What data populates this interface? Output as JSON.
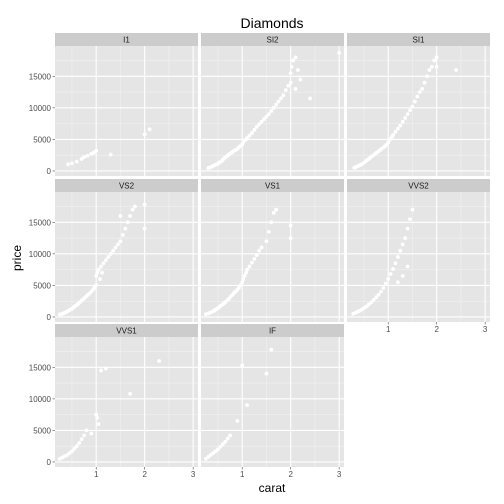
{
  "chart_data": {
    "type": "scatter",
    "title": "Diamonds",
    "xlabel": "carat",
    "ylabel": "price",
    "xlim": [
      0.15,
      3.1
    ],
    "ylim": [
      -800,
      19800
    ],
    "xticks": [
      1,
      2,
      3
    ],
    "yticks": [
      0,
      5000,
      10000,
      15000
    ],
    "grid": true,
    "facet_layout": {
      "ncol": 3,
      "nrow": 3
    },
    "colors": {
      "panel": "#e5e5e5",
      "strip": "#cccccc",
      "grid_major": "#ffffff",
      "grid_minor": "#f2f2f2",
      "point": "#ffffff"
    },
    "panels": [
      {
        "label": "I1",
        "points": [
          [
            0.42,
            1050
          ],
          [
            0.5,
            1200
          ],
          [
            0.6,
            1500
          ],
          [
            0.7,
            1900
          ],
          [
            0.75,
            2200
          ],
          [
            0.82,
            2400
          ],
          [
            0.9,
            2700
          ],
          [
            0.95,
            2900
          ],
          [
            1.0,
            3200
          ],
          [
            1.3,
            2600
          ],
          [
            2.0,
            5800
          ],
          [
            2.1,
            6600
          ]
        ]
      },
      {
        "label": "SI2",
        "points": [
          [
            0.3,
            450
          ],
          [
            0.32,
            500
          ],
          [
            0.35,
            600
          ],
          [
            0.38,
            700
          ],
          [
            0.4,
            800
          ],
          [
            0.43,
            900
          ],
          [
            0.46,
            1000
          ],
          [
            0.5,
            1150
          ],
          [
            0.52,
            1300
          ],
          [
            0.55,
            1450
          ],
          [
            0.58,
            1600
          ],
          [
            0.6,
            1800
          ],
          [
            0.63,
            2000
          ],
          [
            0.66,
            2200
          ],
          [
            0.7,
            2400
          ],
          [
            0.72,
            2600
          ],
          [
            0.75,
            2700
          ],
          [
            0.78,
            2900
          ],
          [
            0.8,
            3000
          ],
          [
            0.83,
            3200
          ],
          [
            0.86,
            3300
          ],
          [
            0.9,
            3500
          ],
          [
            0.92,
            3700
          ],
          [
            0.95,
            3900
          ],
          [
            1.0,
            4200
          ],
          [
            1.02,
            4500
          ],
          [
            1.05,
            4800
          ],
          [
            1.08,
            5000
          ],
          [
            1.1,
            5200
          ],
          [
            1.15,
            5600
          ],
          [
            1.2,
            6000
          ],
          [
            1.25,
            6500
          ],
          [
            1.3,
            7000
          ],
          [
            1.35,
            7400
          ],
          [
            1.4,
            7800
          ],
          [
            1.45,
            8200
          ],
          [
            1.5,
            8600
          ],
          [
            1.55,
            9000
          ],
          [
            1.6,
            9500
          ],
          [
            1.65,
            10000
          ],
          [
            1.7,
            10500
          ],
          [
            1.75,
            11000
          ],
          [
            1.8,
            11500
          ],
          [
            1.85,
            12000
          ],
          [
            1.9,
            12800
          ],
          [
            1.95,
            13500
          ],
          [
            2.0,
            14000
          ],
          [
            2.0,
            15500
          ],
          [
            2.02,
            16500
          ],
          [
            2.05,
            17500
          ],
          [
            2.1,
            18000
          ],
          [
            2.1,
            13000
          ],
          [
            2.15,
            16000
          ],
          [
            2.2,
            14500
          ],
          [
            2.4,
            11500
          ],
          [
            3.0,
            18700
          ]
        ]
      },
      {
        "label": "SI1",
        "points": [
          [
            0.3,
            500
          ],
          [
            0.33,
            600
          ],
          [
            0.36,
            700
          ],
          [
            0.4,
            850
          ],
          [
            0.43,
            950
          ],
          [
            0.46,
            1100
          ],
          [
            0.5,
            1300
          ],
          [
            0.53,
            1500
          ],
          [
            0.56,
            1700
          ],
          [
            0.6,
            1900
          ],
          [
            0.63,
            2100
          ],
          [
            0.66,
            2300
          ],
          [
            0.7,
            2500
          ],
          [
            0.73,
            2700
          ],
          [
            0.76,
            2900
          ],
          [
            0.8,
            3100
          ],
          [
            0.83,
            3300
          ],
          [
            0.86,
            3500
          ],
          [
            0.9,
            3700
          ],
          [
            0.93,
            3900
          ],
          [
            0.96,
            4100
          ],
          [
            1.0,
            4500
          ],
          [
            1.02,
            4800
          ],
          [
            1.05,
            5100
          ],
          [
            1.08,
            5400
          ],
          [
            1.1,
            5700
          ],
          [
            1.15,
            6200
          ],
          [
            1.2,
            6700
          ],
          [
            1.25,
            7200
          ],
          [
            1.3,
            7800
          ],
          [
            1.35,
            8400
          ],
          [
            1.4,
            9000
          ],
          [
            1.45,
            9600
          ],
          [
            1.5,
            10200
          ],
          [
            1.55,
            11000
          ],
          [
            1.6,
            11800
          ],
          [
            1.65,
            12500
          ],
          [
            1.7,
            13000
          ],
          [
            1.75,
            14000
          ],
          [
            1.8,
            15000
          ],
          [
            1.85,
            16000
          ],
          [
            1.9,
            16500
          ],
          [
            1.95,
            17500
          ],
          [
            2.0,
            18000
          ],
          [
            2.0,
            16500
          ],
          [
            2.4,
            16000
          ]
        ]
      },
      {
        "label": "VS2",
        "points": [
          [
            0.25,
            400
          ],
          [
            0.3,
            500
          ],
          [
            0.33,
            600
          ],
          [
            0.36,
            700
          ],
          [
            0.4,
            850
          ],
          [
            0.43,
            1000
          ],
          [
            0.46,
            1150
          ],
          [
            0.5,
            1300
          ],
          [
            0.53,
            1500
          ],
          [
            0.56,
            1700
          ],
          [
            0.6,
            1900
          ],
          [
            0.63,
            2100
          ],
          [
            0.66,
            2300
          ],
          [
            0.7,
            2600
          ],
          [
            0.73,
            2800
          ],
          [
            0.76,
            3000
          ],
          [
            0.8,
            3300
          ],
          [
            0.83,
            3500
          ],
          [
            0.86,
            3700
          ],
          [
            0.9,
            4000
          ],
          [
            0.93,
            4300
          ],
          [
            0.96,
            4600
          ],
          [
            1.0,
            5000
          ],
          [
            1.0,
            6500
          ],
          [
            1.02,
            7000
          ],
          [
            1.05,
            7500
          ],
          [
            1.08,
            6000
          ],
          [
            1.1,
            8000
          ],
          [
            1.12,
            7000
          ],
          [
            1.15,
            8500
          ],
          [
            1.2,
            9000
          ],
          [
            1.25,
            9500
          ],
          [
            1.3,
            10000
          ],
          [
            1.35,
            10500
          ],
          [
            1.4,
            11000
          ],
          [
            1.45,
            11500
          ],
          [
            1.5,
            12000
          ],
          [
            1.55,
            13000
          ],
          [
            1.6,
            14000
          ],
          [
            1.65,
            15000
          ],
          [
            1.7,
            16000
          ],
          [
            1.75,
            17000
          ],
          [
            1.8,
            17500
          ],
          [
            2.0,
            17800
          ],
          [
            2.0,
            14000
          ],
          [
            1.5,
            16000
          ]
        ]
      },
      {
        "label": "VS1",
        "points": [
          [
            0.25,
            450
          ],
          [
            0.3,
            550
          ],
          [
            0.33,
            650
          ],
          [
            0.36,
            750
          ],
          [
            0.4,
            900
          ],
          [
            0.43,
            1050
          ],
          [
            0.46,
            1200
          ],
          [
            0.5,
            1400
          ],
          [
            0.53,
            1600
          ],
          [
            0.56,
            1800
          ],
          [
            0.6,
            2000
          ],
          [
            0.63,
            2200
          ],
          [
            0.66,
            2400
          ],
          [
            0.7,
            2700
          ],
          [
            0.73,
            2900
          ],
          [
            0.76,
            3200
          ],
          [
            0.8,
            3500
          ],
          [
            0.83,
            3800
          ],
          [
            0.86,
            4000
          ],
          [
            0.9,
            4300
          ],
          [
            0.93,
            4600
          ],
          [
            0.96,
            5000
          ],
          [
            1.0,
            5500
          ],
          [
            1.02,
            6000
          ],
          [
            1.05,
            6500
          ],
          [
            1.08,
            7000
          ],
          [
            1.1,
            7500
          ],
          [
            1.15,
            8000
          ],
          [
            1.2,
            8600
          ],
          [
            1.25,
            9200
          ],
          [
            1.3,
            9800
          ],
          [
            1.35,
            10500
          ],
          [
            1.4,
            11000
          ],
          [
            1.5,
            12000
          ],
          [
            1.55,
            13500
          ],
          [
            1.6,
            15000
          ],
          [
            1.65,
            16500
          ],
          [
            1.7,
            17000
          ],
          [
            2.0,
            14500
          ],
          [
            2.0,
            12500
          ]
        ]
      },
      {
        "label": "VVS2",
        "points": [
          [
            0.28,
            500
          ],
          [
            0.32,
            650
          ],
          [
            0.36,
            800
          ],
          [
            0.4,
            950
          ],
          [
            0.44,
            1100
          ],
          [
            0.48,
            1300
          ],
          [
            0.52,
            1500
          ],
          [
            0.56,
            1700
          ],
          [
            0.6,
            2000
          ],
          [
            0.65,
            2300
          ],
          [
            0.7,
            2700
          ],
          [
            0.75,
            3100
          ],
          [
            0.8,
            3500
          ],
          [
            0.85,
            4000
          ],
          [
            0.9,
            4600
          ],
          [
            0.95,
            5300
          ],
          [
            1.0,
            6000
          ],
          [
            1.05,
            6800
          ],
          [
            1.1,
            7600
          ],
          [
            1.15,
            8500
          ],
          [
            1.2,
            9500
          ],
          [
            1.25,
            10500
          ],
          [
            1.3,
            11500
          ],
          [
            1.35,
            12500
          ],
          [
            1.4,
            14000
          ],
          [
            1.45,
            15500
          ],
          [
            1.5,
            17000
          ],
          [
            1.2,
            5500
          ],
          [
            1.3,
            6500
          ],
          [
            1.4,
            8000
          ]
        ]
      },
      {
        "label": "VVS1",
        "points": [
          [
            0.25,
            500
          ],
          [
            0.3,
            700
          ],
          [
            0.35,
            900
          ],
          [
            0.4,
            1100
          ],
          [
            0.45,
            1400
          ],
          [
            0.5,
            1700
          ],
          [
            0.55,
            2100
          ],
          [
            0.6,
            2500
          ],
          [
            0.65,
            3000
          ],
          [
            0.7,
            3600
          ],
          [
            0.75,
            4200
          ],
          [
            0.8,
            5000
          ],
          [
            0.9,
            4500
          ],
          [
            1.0,
            7500
          ],
          [
            1.02,
            7000
          ],
          [
            1.05,
            6000
          ],
          [
            1.1,
            14500
          ],
          [
            1.2,
            14800
          ],
          [
            1.7,
            10800
          ],
          [
            2.3,
            16000
          ]
        ]
      },
      {
        "label": "IF",
        "points": [
          [
            0.25,
            500
          ],
          [
            0.3,
            800
          ],
          [
            0.35,
            1100
          ],
          [
            0.4,
            1400
          ],
          [
            0.45,
            1700
          ],
          [
            0.5,
            2000
          ],
          [
            0.55,
            2400
          ],
          [
            0.6,
            2800
          ],
          [
            0.65,
            3200
          ],
          [
            0.7,
            3700
          ],
          [
            0.75,
            4200
          ],
          [
            0.9,
            6500
          ],
          [
            1.0,
            15300
          ],
          [
            1.1,
            9000
          ],
          [
            1.5,
            14000
          ],
          [
            1.6,
            17800
          ]
        ]
      }
    ]
  }
}
